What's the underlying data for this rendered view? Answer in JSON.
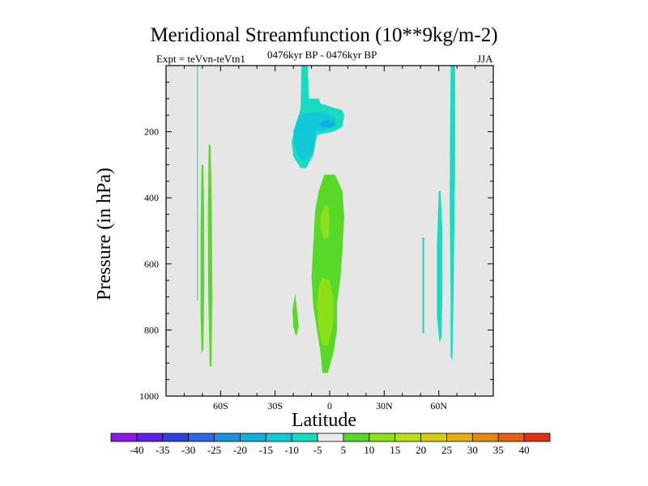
{
  "chart_data": {
    "type": "heatmap",
    "title": "Meridional Streamfunction (10**9kg/m-2)",
    "subtitle_left": "Expt = teVvn-teVtn1",
    "subtitle_center": "0476kyr BP - 0476kyr BP",
    "subtitle_right": "JJA",
    "xlabel": "Latitude",
    "ylabel": "Pressure (in hPa)",
    "xlim": [
      -90,
      90
    ],
    "ylim": [
      1000,
      0
    ],
    "xticks": [
      {
        "value": -60,
        "label": "60S"
      },
      {
        "value": -30,
        "label": "30S"
      },
      {
        "value": 0,
        "label": "0"
      },
      {
        "value": 30,
        "label": "30N"
      },
      {
        "value": 60,
        "label": "60N"
      }
    ],
    "yticks": [
      {
        "value": 200,
        "label": "200"
      },
      {
        "value": 400,
        "label": "400"
      },
      {
        "value": 600,
        "label": "600"
      },
      {
        "value": 800,
        "label": "800"
      },
      {
        "value": 1000,
        "label": "1000"
      }
    ],
    "background_color": "#e6e6e6",
    "colorbar": {
      "labels": [
        "-40",
        "-35",
        "-30",
        "-25",
        "-20",
        "-15",
        "-10",
        "-5",
        "5",
        "10",
        "15",
        "20",
        "25",
        "30",
        "35",
        "40"
      ],
      "colors": [
        "#8a18e0",
        "#5a20e6",
        "#2d3fdc",
        "#2a68e0",
        "#1e8ede",
        "#12aede",
        "#10c8d8",
        "#18dcc0",
        "#ebebeb",
        "#58d828",
        "#8ce018",
        "#b8e018",
        "#d4cc10",
        "#e4b010",
        "#e48810",
        "#e46010",
        "#dc3010"
      ]
    },
    "contours": [
      {
        "id": "sh-thin-line",
        "level": -5,
        "color": "#18dcc0",
        "points": [
          [
            -73,
            0
          ],
          [
            -72.5,
            0
          ],
          [
            -72.5,
            710
          ],
          [
            -73,
            710
          ]
        ]
      },
      {
        "id": "sh-left-blob",
        "level": 5,
        "color": "#58d828",
        "points": [
          [
            -70.5,
            300
          ],
          [
            -69.5,
            300
          ],
          [
            -69,
            450
          ],
          [
            -69,
            700
          ],
          [
            -69.5,
            860
          ],
          [
            -70.5,
            870
          ],
          [
            -71,
            750
          ],
          [
            -71,
            500
          ]
        ]
      },
      {
        "id": "sh-right-blob",
        "level": 5,
        "color": "#58d828",
        "points": [
          [
            -66.5,
            240
          ],
          [
            -65.5,
            240
          ],
          [
            -64.8,
            450
          ],
          [
            -64.5,
            700
          ],
          [
            -65,
            910
          ],
          [
            -66,
            910
          ],
          [
            -66.8,
            700
          ],
          [
            -67,
            450
          ]
        ]
      },
      {
        "id": "eq-upper-neg",
        "level": -5,
        "color": "#18dcc0",
        "points": [
          [
            -15.5,
            0
          ],
          [
            -12,
            0
          ],
          [
            -11.5,
            100
          ],
          [
            -6,
            100
          ],
          [
            -5,
            115
          ],
          [
            7,
            135
          ],
          [
            8,
            150
          ],
          [
            7,
            185
          ],
          [
            2,
            200
          ],
          [
            -3,
            205
          ],
          [
            -7,
            210
          ],
          [
            -9,
            270
          ],
          [
            -13,
            310
          ],
          [
            -16,
            310
          ],
          [
            -20,
            275
          ],
          [
            -21,
            230
          ],
          [
            -19,
            190
          ],
          [
            -16,
            130
          ]
        ]
      },
      {
        "id": "eq-upper-neg-core",
        "level": -10,
        "color": "#10c8d8",
        "points": [
          [
            -17,
            150
          ],
          [
            -8,
            140
          ],
          [
            2,
            150
          ],
          [
            4,
            185
          ],
          [
            -3,
            195
          ],
          [
            -8,
            200
          ],
          [
            -9,
            260
          ],
          [
            -13,
            285
          ],
          [
            -16,
            285
          ],
          [
            -19,
            250
          ],
          [
            -20,
            200
          ]
        ]
      },
      {
        "id": "eq-upper-neg-center",
        "level": -15,
        "color": "#12aede",
        "points": [
          [
            -4,
            168
          ],
          [
            -1,
            165
          ],
          [
            2,
            170
          ],
          [
            3,
            180
          ],
          [
            0,
            188
          ],
          [
            -4,
            186
          ],
          [
            -5,
            177
          ]
        ]
      },
      {
        "id": "eq-lower-pos",
        "level": 5,
        "color": "#58d828",
        "points": [
          [
            -3,
            330
          ],
          [
            3,
            330
          ],
          [
            7,
            380
          ],
          [
            8,
            460
          ],
          [
            7,
            560
          ],
          [
            6,
            640
          ],
          [
            4,
            720
          ],
          [
            4,
            800
          ],
          [
            2,
            870
          ],
          [
            -1,
            930
          ],
          [
            -4,
            930
          ],
          [
            -5,
            870
          ],
          [
            -7,
            800
          ],
          [
            -9,
            730
          ],
          [
            -10,
            640
          ],
          [
            -9,
            540
          ],
          [
            -8,
            440
          ],
          [
            -6,
            380
          ]
        ]
      },
      {
        "id": "eq-lower-pos-core-upper",
        "level": 10,
        "color": "#8ce018",
        "points": [
          [
            -2.5,
            420
          ],
          [
            -0.5,
            430
          ],
          [
            0,
            470
          ],
          [
            -0.5,
            520
          ],
          [
            -3,
            525
          ],
          [
            -5,
            495
          ],
          [
            -5,
            455
          ]
        ]
      },
      {
        "id": "eq-lower-pos-core-lower",
        "level": 10,
        "color": "#8ce018",
        "points": [
          [
            -4,
            640
          ],
          [
            0,
            650
          ],
          [
            2,
            700
          ],
          [
            2,
            780
          ],
          [
            0,
            830
          ],
          [
            -1,
            850
          ],
          [
            -4,
            845
          ],
          [
            -6,
            800
          ],
          [
            -7,
            720
          ],
          [
            -6,
            670
          ]
        ]
      },
      {
        "id": "midlat-small-blob",
        "level": 5,
        "color": "#58d828",
        "points": [
          [
            -19,
            690
          ],
          [
            -18,
            740
          ],
          [
            -17,
            790
          ],
          [
            -18.5,
            820
          ],
          [
            -20,
            790
          ],
          [
            -20.5,
            740
          ]
        ]
      },
      {
        "id": "nh-thin-line",
        "level": -5,
        "color": "#18dcc0",
        "points": [
          [
            51,
            520
          ],
          [
            52,
            520
          ],
          [
            52,
            810
          ],
          [
            51,
            810
          ]
        ]
      },
      {
        "id": "nh-left-blob",
        "level": -5,
        "color": "#18dcc0",
        "points": [
          [
            60,
            380
          ],
          [
            61,
            380
          ],
          [
            62,
            500
          ],
          [
            62,
            700
          ],
          [
            61.5,
            820
          ],
          [
            60.5,
            840
          ],
          [
            59,
            760
          ],
          [
            59,
            550
          ]
        ]
      },
      {
        "id": "nh-tall-blob",
        "level": -5,
        "color": "#18dcc0",
        "points": [
          [
            66.5,
            0
          ],
          [
            69,
            0
          ],
          [
            69,
            300
          ],
          [
            68.5,
            550
          ],
          [
            68,
            750
          ],
          [
            67.5,
            890
          ],
          [
            66.5,
            880
          ],
          [
            66.5,
            700
          ],
          [
            66,
            400
          ]
        ]
      }
    ]
  }
}
